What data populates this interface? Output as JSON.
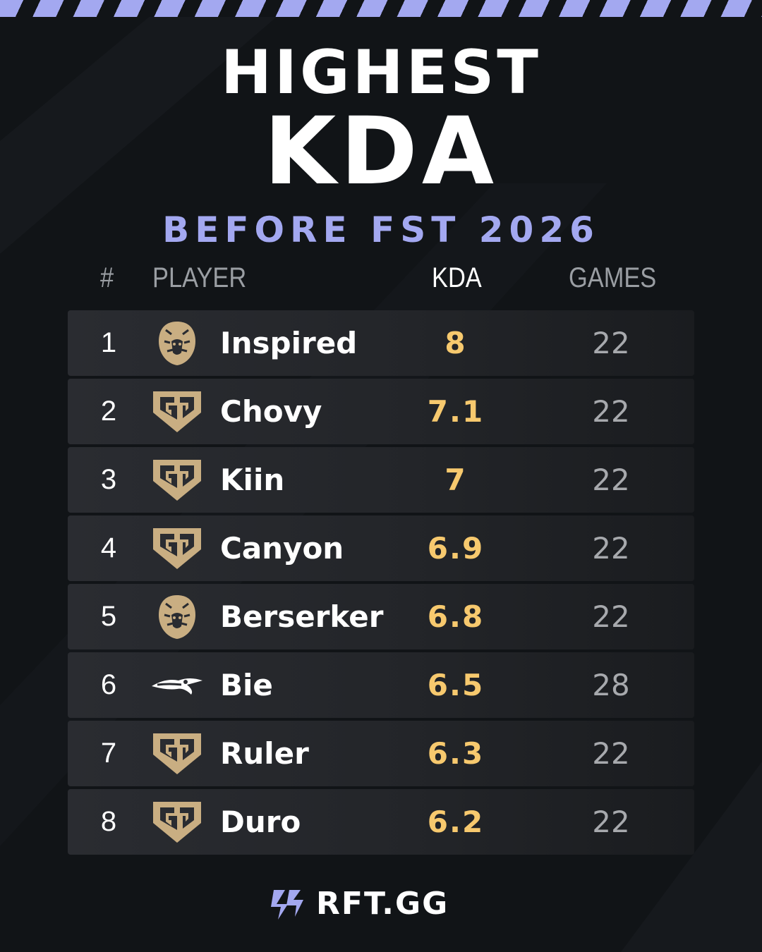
{
  "title": {
    "line1": "HIGHEST",
    "line2": "KDA"
  },
  "subtitle": "BEFORE FST 2026",
  "headers": {
    "rank": "#",
    "player": "PLAYER",
    "kda": "KDA",
    "games": "GAMES"
  },
  "colors": {
    "background": "#111417",
    "accent": "#a3a8f0",
    "kda_value": "#f7c96e",
    "games_value": "#a7a9ad",
    "team_gold": "#c9ae82"
  },
  "chart_data": {
    "type": "table",
    "title": "HIGHEST KDA",
    "subtitle": "BEFORE FST 2026",
    "columns": [
      "#",
      "PLAYER",
      "KDA",
      "GAMES"
    ],
    "rows": [
      {
        "rank": "1",
        "player": "Inspired",
        "team_icon": "lion-logo-icon",
        "kda": "8",
        "games": "22"
      },
      {
        "rank": "2",
        "player": "Chovy",
        "team_icon": "gen-g-logo-icon",
        "kda": "7.1",
        "games": "22"
      },
      {
        "rank": "3",
        "player": "Kiin",
        "team_icon": "gen-g-logo-icon",
        "kda": "7",
        "games": "22"
      },
      {
        "rank": "4",
        "player": "Canyon",
        "team_icon": "gen-g-logo-icon",
        "kda": "6.9",
        "games": "22"
      },
      {
        "rank": "5",
        "player": "Berserker",
        "team_icon": "lion-logo-icon",
        "kda": "6.8",
        "games": "22"
      },
      {
        "rank": "6",
        "player": "Bie",
        "team_icon": "team-spirit-logo-icon",
        "kda": "6.5",
        "games": "28"
      },
      {
        "rank": "7",
        "player": "Ruler",
        "team_icon": "gen-g-logo-icon",
        "kda": "6.3",
        "games": "22"
      },
      {
        "rank": "8",
        "player": "Duro",
        "team_icon": "gen-g-logo-icon",
        "kda": "6.2",
        "games": "22"
      }
    ]
  },
  "footer": {
    "brand": "RFT.GG",
    "logo_icon": "rft-logo-icon"
  }
}
